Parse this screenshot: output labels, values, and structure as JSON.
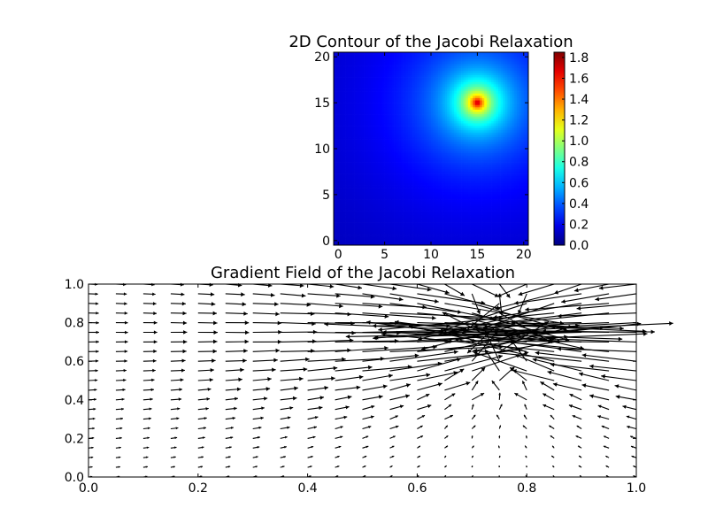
{
  "chart_data": [
    {
      "type": "heatmap",
      "title": "2D Contour of the Jacobi Relaxation",
      "xlim": [
        -0.5,
        20.5
      ],
      "ylim": [
        -0.5,
        20.5
      ],
      "xticks": [
        0,
        5,
        10,
        15,
        20
      ],
      "yticks": [
        0,
        5,
        10,
        15,
        20
      ],
      "xtick_labels": [
        "0",
        "5",
        "10",
        "15",
        "20"
      ],
      "ytick_labels": [
        "0",
        "5",
        "10",
        "15",
        "20"
      ],
      "colormap": "jet",
      "grid_size": [
        21,
        21
      ],
      "peak": {
        "x": 15,
        "y": 15,
        "value": 1.85
      },
      "colorbar": {
        "range": [
          0.0,
          1.85
        ],
        "ticks": [
          0.0,
          0.2,
          0.4,
          0.6,
          0.8,
          1.0,
          1.2,
          1.4,
          1.6,
          1.8
        ],
        "tick_labels": [
          "0.0",
          "0.2",
          "0.4",
          "0.6",
          "0.8",
          "1.0",
          "1.2",
          "1.4",
          "1.6",
          "1.8"
        ]
      }
    },
    {
      "type": "quiver",
      "title": "Gradient Field of the Jacobi Relaxation",
      "xlim": [
        0.0,
        1.0
      ],
      "ylim": [
        0.0,
        1.0
      ],
      "xticks": [
        0.0,
        0.2,
        0.4,
        0.6,
        0.8,
        1.0
      ],
      "yticks": [
        0.0,
        0.2,
        0.4,
        0.6,
        0.8,
        1.0
      ],
      "xtick_labels": [
        "0.0",
        "0.2",
        "0.4",
        "0.6",
        "0.8",
        "1.0"
      ],
      "ytick_labels": [
        "0.0",
        "0.2",
        "0.4",
        "0.6",
        "0.8",
        "1.0"
      ],
      "grid_size": [
        21,
        21
      ],
      "grid_spacing": 0.05,
      "source": {
        "x": 0.75,
        "y": 0.75
      },
      "arrow_color": "#000000"
    }
  ]
}
